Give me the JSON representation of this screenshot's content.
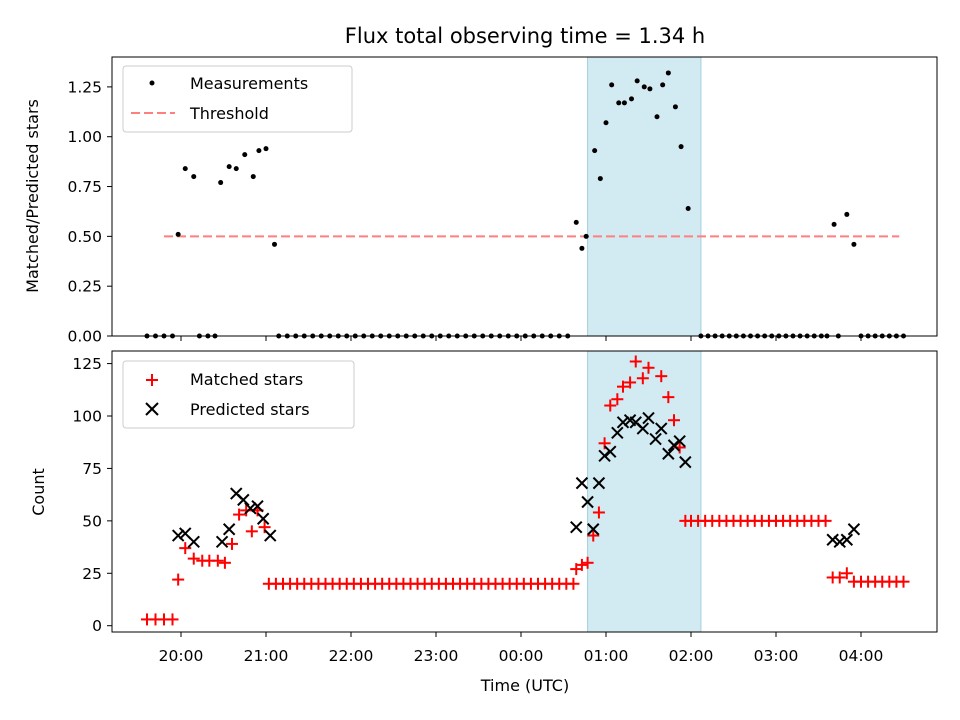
{
  "chart_data": [
    {
      "type": "scatter",
      "title": "Flux total observing time = 1.34 h",
      "xlabel": "",
      "ylabel": "Matched/Predicted stars",
      "ylim": [
        0,
        1.4
      ],
      "yticks": [
        0.0,
        0.25,
        0.5,
        0.75,
        1.0,
        1.25
      ],
      "shaded_interval": {
        "start": "00:47",
        "end": "02:07",
        "color": "#add8e6"
      },
      "legend": {
        "position": "top-left",
        "entries": [
          "Measurements",
          "Threshold"
        ]
      },
      "threshold": {
        "name": "Threshold",
        "value": 0.5,
        "start": "19:48",
        "end": "04:27",
        "color": "#ff7f7f",
        "style": "dashed"
      },
      "series": [
        {
          "name": "Measurements",
          "color": "#000000",
          "points": [
            [
              "19:36",
              0
            ],
            [
              "19:42",
              0
            ],
            [
              "19:48",
              0
            ],
            [
              "19:54",
              0
            ],
            [
              "19:58",
              0.51
            ],
            [
              "20:03",
              0.84
            ],
            [
              "20:09",
              0.8
            ],
            [
              "20:13",
              0
            ],
            [
              "20:19",
              0
            ],
            [
              "20:24",
              0
            ],
            [
              "20:28",
              0.77
            ],
            [
              "20:34",
              0.85
            ],
            [
              "20:39",
              0.84
            ],
            [
              "20:45",
              0.91
            ],
            [
              "20:51",
              0.8
            ],
            [
              "20:55",
              0.93
            ],
            [
              "21:00",
              0.94
            ],
            [
              "21:06",
              0.46
            ],
            [
              "21:09",
              0
            ],
            [
              "21:15",
              0
            ],
            [
              "21:21",
              0
            ],
            [
              "21:27",
              0
            ],
            [
              "21:33",
              0
            ],
            [
              "21:39",
              0
            ],
            [
              "21:45",
              0
            ],
            [
              "21:51",
              0
            ],
            [
              "21:57",
              0
            ],
            [
              "22:03",
              0
            ],
            [
              "22:09",
              0
            ],
            [
              "22:15",
              0
            ],
            [
              "22:21",
              0
            ],
            [
              "22:27",
              0
            ],
            [
              "22:33",
              0
            ],
            [
              "22:39",
              0
            ],
            [
              "22:45",
              0
            ],
            [
              "22:51",
              0
            ],
            [
              "22:57",
              0
            ],
            [
              "23:03",
              0
            ],
            [
              "23:09",
              0
            ],
            [
              "23:15",
              0
            ],
            [
              "23:21",
              0
            ],
            [
              "23:27",
              0
            ],
            [
              "23:33",
              0
            ],
            [
              "23:39",
              0
            ],
            [
              "23:45",
              0
            ],
            [
              "23:51",
              0
            ],
            [
              "23:57",
              0
            ],
            [
              "00:03",
              0
            ],
            [
              "00:09",
              0
            ],
            [
              "00:15",
              0
            ],
            [
              "00:21",
              0
            ],
            [
              "00:27",
              0
            ],
            [
              "00:33",
              0
            ],
            [
              "00:39",
              0.57
            ],
            [
              "00:43",
              0.44
            ],
            [
              "00:46",
              0.5
            ],
            [
              "00:52",
              0.93
            ],
            [
              "00:56",
              0.79
            ],
            [
              "01:00",
              1.07
            ],
            [
              "01:04",
              1.26
            ],
            [
              "01:09",
              1.17
            ],
            [
              "01:13",
              1.17
            ],
            [
              "01:18",
              1.19
            ],
            [
              "01:22",
              1.28
            ],
            [
              "01:27",
              1.25
            ],
            [
              "01:31",
              1.24
            ],
            [
              "01:36",
              1.1
            ],
            [
              "01:40",
              1.26
            ],
            [
              "01:44",
              1.32
            ],
            [
              "01:49",
              1.15
            ],
            [
              "01:53",
              0.95
            ],
            [
              "01:58",
              0.64
            ],
            [
              "02:07",
              0
            ],
            [
              "02:12",
              0
            ],
            [
              "02:17",
              0
            ],
            [
              "02:22",
              0
            ],
            [
              "02:27",
              0
            ],
            [
              "02:32",
              0
            ],
            [
              "02:37",
              0
            ],
            [
              "02:42",
              0
            ],
            [
              "02:47",
              0
            ],
            [
              "02:52",
              0
            ],
            [
              "02:57",
              0
            ],
            [
              "03:02",
              0
            ],
            [
              "03:07",
              0
            ],
            [
              "03:12",
              0
            ],
            [
              "03:17",
              0
            ],
            [
              "03:22",
              0
            ],
            [
              "03:27",
              0
            ],
            [
              "03:32",
              0
            ],
            [
              "03:36",
              0
            ],
            [
              "03:41",
              0.56
            ],
            [
              "03:44",
              0
            ],
            [
              "03:50",
              0.61
            ],
            [
              "03:55",
              0.46
            ],
            [
              "04:00",
              0
            ],
            [
              "04:05",
              0
            ],
            [
              "04:10",
              0
            ],
            [
              "04:15",
              0
            ],
            [
              "04:20",
              0
            ],
            [
              "04:25",
              0
            ],
            [
              "04:30",
              0
            ]
          ]
        }
      ]
    },
    {
      "type": "scatter",
      "title": "",
      "xlabel": "Time (UTC)",
      "ylabel": "Count",
      "ylim": [
        -3,
        131
      ],
      "yticks": [
        0,
        25,
        50,
        75,
        100,
        125
      ],
      "xticks": [
        "20:00",
        "21:00",
        "22:00",
        "23:00",
        "00:00",
        "01:00",
        "02:00",
        "03:00",
        "04:00"
      ],
      "shaded_interval": {
        "start": "00:47",
        "end": "02:07",
        "color": "#add8e6"
      },
      "legend": {
        "position": "top-left",
        "entries": [
          "Matched stars",
          "Predicted stars"
        ]
      },
      "series": [
        {
          "name": "Matched stars",
          "marker": "+",
          "color": "#ff0000",
          "points": [
            [
              "19:36",
              3
            ],
            [
              "19:42",
              3
            ],
            [
              "19:48",
              3
            ],
            [
              "19:54",
              3
            ],
            [
              "19:58",
              22
            ],
            [
              "20:03",
              37
            ],
            [
              "20:09",
              32
            ],
            [
              "20:15",
              31
            ],
            [
              "20:20",
              31
            ],
            [
              "20:26",
              31
            ],
            [
              "20:31",
              30
            ],
            [
              "20:36",
              39
            ],
            [
              "20:41",
              53
            ],
            [
              "20:46",
              55
            ],
            [
              "20:50",
              45
            ],
            [
              "20:54",
              55
            ],
            [
              "20:59",
              47
            ],
            [
              "21:02",
              20
            ],
            [
              "21:07",
              20
            ],
            [
              "21:12",
              20
            ],
            [
              "21:17",
              20
            ],
            [
              "21:22",
              20
            ],
            [
              "21:27",
              20
            ],
            [
              "21:32",
              20
            ],
            [
              "21:37",
              20
            ],
            [
              "21:42",
              20
            ],
            [
              "21:47",
              20
            ],
            [
              "21:52",
              20
            ],
            [
              "21:57",
              20
            ],
            [
              "22:02",
              20
            ],
            [
              "22:07",
              20
            ],
            [
              "22:12",
              20
            ],
            [
              "22:17",
              20
            ],
            [
              "22:22",
              20
            ],
            [
              "22:27",
              20
            ],
            [
              "22:32",
              20
            ],
            [
              "22:37",
              20
            ],
            [
              "22:42",
              20
            ],
            [
              "22:47",
              20
            ],
            [
              "22:52",
              20
            ],
            [
              "22:57",
              20
            ],
            [
              "23:02",
              20
            ],
            [
              "23:07",
              20
            ],
            [
              "23:12",
              20
            ],
            [
              "23:17",
              20
            ],
            [
              "23:22",
              20
            ],
            [
              "23:27",
              20
            ],
            [
              "23:32",
              20
            ],
            [
              "23:37",
              20
            ],
            [
              "23:42",
              20
            ],
            [
              "23:47",
              20
            ],
            [
              "23:52",
              20
            ],
            [
              "23:57",
              20
            ],
            [
              "00:02",
              20
            ],
            [
              "00:07",
              20
            ],
            [
              "00:12",
              20
            ],
            [
              "00:17",
              20
            ],
            [
              "00:22",
              20
            ],
            [
              "00:27",
              20
            ],
            [
              "00:32",
              20
            ],
            [
              "00:37",
              20
            ],
            [
              "00:39",
              27
            ],
            [
              "00:43",
              29
            ],
            [
              "00:47",
              30
            ],
            [
              "00:51",
              43
            ],
            [
              "00:55",
              54
            ],
            [
              "00:59",
              87
            ],
            [
              "01:03",
              105
            ],
            [
              "01:08",
              108
            ],
            [
              "01:12",
              114
            ],
            [
              "01:17",
              116
            ],
            [
              "01:21",
              126
            ],
            [
              "01:26",
              118
            ],
            [
              "01:30",
              123
            ],
            [
              "01:39",
              119
            ],
            [
              "01:44",
              109
            ],
            [
              "01:48",
              98
            ],
            [
              "01:52",
              85
            ],
            [
              "01:56",
              50
            ],
            [
              "02:00",
              50
            ],
            [
              "02:05",
              50
            ],
            [
              "02:10",
              50
            ],
            [
              "02:15",
              50
            ],
            [
              "02:20",
              50
            ],
            [
              "02:25",
              50
            ],
            [
              "02:30",
              50
            ],
            [
              "02:35",
              50
            ],
            [
              "02:40",
              50
            ],
            [
              "02:45",
              50
            ],
            [
              "02:50",
              50
            ],
            [
              "02:55",
              50
            ],
            [
              "03:00",
              50
            ],
            [
              "03:05",
              50
            ],
            [
              "03:10",
              50
            ],
            [
              "03:15",
              50
            ],
            [
              "03:20",
              50
            ],
            [
              "03:25",
              50
            ],
            [
              "03:30",
              50
            ],
            [
              "03:35",
              50
            ],
            [
              "03:40",
              23
            ],
            [
              "03:45",
              23
            ],
            [
              "03:50",
              25
            ],
            [
              "03:55",
              21
            ],
            [
              "04:00",
              21
            ],
            [
              "04:05",
              21
            ],
            [
              "04:10",
              21
            ],
            [
              "04:15",
              21
            ],
            [
              "04:20",
              21
            ],
            [
              "04:25",
              21
            ],
            [
              "04:30",
              21
            ]
          ]
        },
        {
          "name": "Predicted stars",
          "marker": "x",
          "color": "#000000",
          "points": [
            [
              "19:58",
              43
            ],
            [
              "20:03",
              44
            ],
            [
              "20:09",
              40
            ],
            [
              "20:29",
              40
            ],
            [
              "20:34",
              46
            ],
            [
              "20:39",
              63
            ],
            [
              "20:44",
              60
            ],
            [
              "20:49",
              56
            ],
            [
              "20:54",
              57
            ],
            [
              "20:58",
              51
            ],
            [
              "21:03",
              43
            ],
            [
              "00:39",
              47
            ],
            [
              "00:43",
              68
            ],
            [
              "00:47",
              59
            ],
            [
              "00:51",
              46
            ],
            [
              "00:55",
              68
            ],
            [
              "00:59",
              81
            ],
            [
              "01:03",
              83
            ],
            [
              "01:08",
              92
            ],
            [
              "01:12",
              97
            ],
            [
              "01:17",
              98
            ],
            [
              "01:21",
              97
            ],
            [
              "01:26",
              94
            ],
            [
              "01:30",
              99
            ],
            [
              "01:35",
              89
            ],
            [
              "01:39",
              94
            ],
            [
              "01:44",
              82
            ],
            [
              "01:48",
              86
            ],
            [
              "01:52",
              88
            ],
            [
              "01:56",
              78
            ],
            [
              "03:40",
              41
            ],
            [
              "03:45",
              40
            ],
            [
              "03:50",
              41
            ],
            [
              "03:55",
              46
            ]
          ]
        }
      ]
    }
  ]
}
